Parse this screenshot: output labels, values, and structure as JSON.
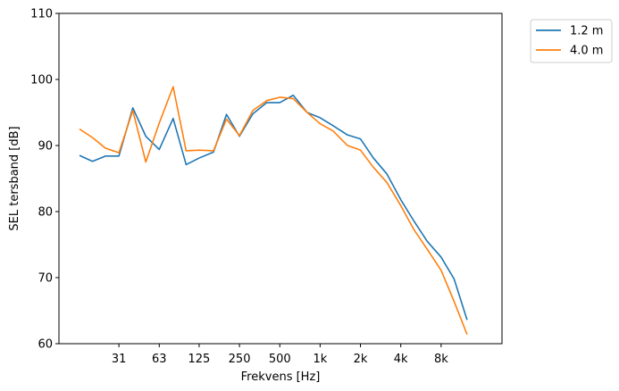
{
  "chart_data": {
    "type": "line",
    "title": "",
    "xlabel": "Frekvens [Hz]",
    "ylabel": "SEL tersband [dB]",
    "x_scale": "log2",
    "ylim": [
      60,
      110
    ],
    "yticks": [
      60,
      70,
      80,
      90,
      100,
      110
    ],
    "xticks": [
      {
        "value": 31.5,
        "label": "31"
      },
      {
        "value": 63,
        "label": "63"
      },
      {
        "value": 125,
        "label": "125"
      },
      {
        "value": 250,
        "label": "250"
      },
      {
        "value": 500,
        "label": "500"
      },
      {
        "value": 1000,
        "label": "1k"
      },
      {
        "value": 2000,
        "label": "2k"
      },
      {
        "value": 4000,
        "label": "4k"
      },
      {
        "value": 8000,
        "label": "8k"
      }
    ],
    "grid": false,
    "legend_position": "outside-top-right",
    "x": [
      16,
      20,
      25,
      31.5,
      40,
      50,
      63,
      80,
      100,
      125,
      160,
      200,
      250,
      315,
      400,
      500,
      630,
      800,
      1000,
      1250,
      1600,
      2000,
      2500,
      3150,
      4000,
      5000,
      6300,
      8000,
      10000,
      12500,
      16000
    ],
    "series": [
      {
        "name": "1.2 m",
        "color": "#1f77b4",
        "values": [
          88.5,
          87.6,
          88.4,
          88.4,
          95.7,
          91.4,
          89.4,
          94.1,
          87.1,
          88.1,
          89.0,
          94.7,
          91.4,
          94.8,
          96.5,
          96.5,
          97.6,
          95.0,
          94.2,
          93.0,
          91.6,
          91.0,
          88.1,
          85.7,
          81.8,
          78.6,
          75.5,
          73.1,
          69.8,
          63.6,
          null
        ]
      },
      {
        "name": "4.0 m",
        "color": "#ff7f0e",
        "values": [
          92.5,
          91.2,
          89.6,
          88.9,
          95.3,
          87.5,
          93.4,
          98.9,
          89.2,
          89.3,
          89.2,
          94.0,
          91.5,
          95.3,
          96.8,
          97.3,
          97.1,
          95.0,
          93.3,
          92.2,
          90.0,
          89.3,
          86.7,
          84.4,
          80.9,
          77.3,
          74.3,
          71.1,
          66.4,
          61.4,
          null
        ]
      }
    ]
  }
}
